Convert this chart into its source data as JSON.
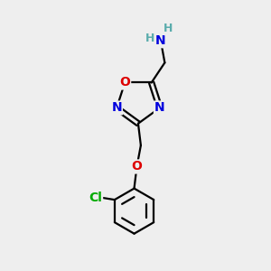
{
  "background_color": "#eeeeee",
  "atom_colors": {
    "C": "#000000",
    "N": "#0000dd",
    "O": "#dd0000",
    "Cl": "#00aa00",
    "H": "#5aacac"
  },
  "bond_color": "#000000",
  "bond_width": 1.6,
  "font_size_atoms": 10,
  "font_size_h": 9,
  "ring_r": 0.85,
  "benz_r": 0.85
}
